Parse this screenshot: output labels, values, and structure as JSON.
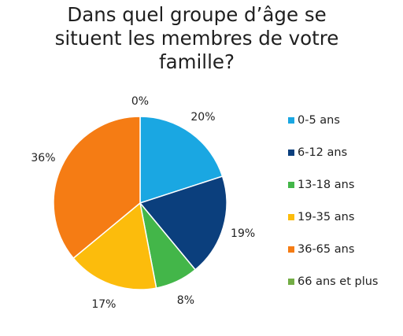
{
  "chart_data": {
    "type": "pie",
    "title_lines": [
      "Dans quel groupe d’âge se",
      "situent les membres de votre",
      "famille?"
    ],
    "categories": [
      "0-5 ans",
      "6-12 ans",
      "13-18 ans",
      "19-35 ans",
      "36-65 ans",
      "66 ans et plus"
    ],
    "values": [
      20,
      19,
      8,
      17,
      36,
      0
    ],
    "value_labels": [
      "20%",
      "19%",
      "8%",
      "17%",
      "36%",
      "0%"
    ],
    "colors": [
      "#1aa7e2",
      "#0b3f7d",
      "#43b649",
      "#fcbc0c",
      "#f57c14",
      "#73ad45"
    ],
    "legend_position": "right",
    "start_angle": "top",
    "direction": "clockwise"
  }
}
